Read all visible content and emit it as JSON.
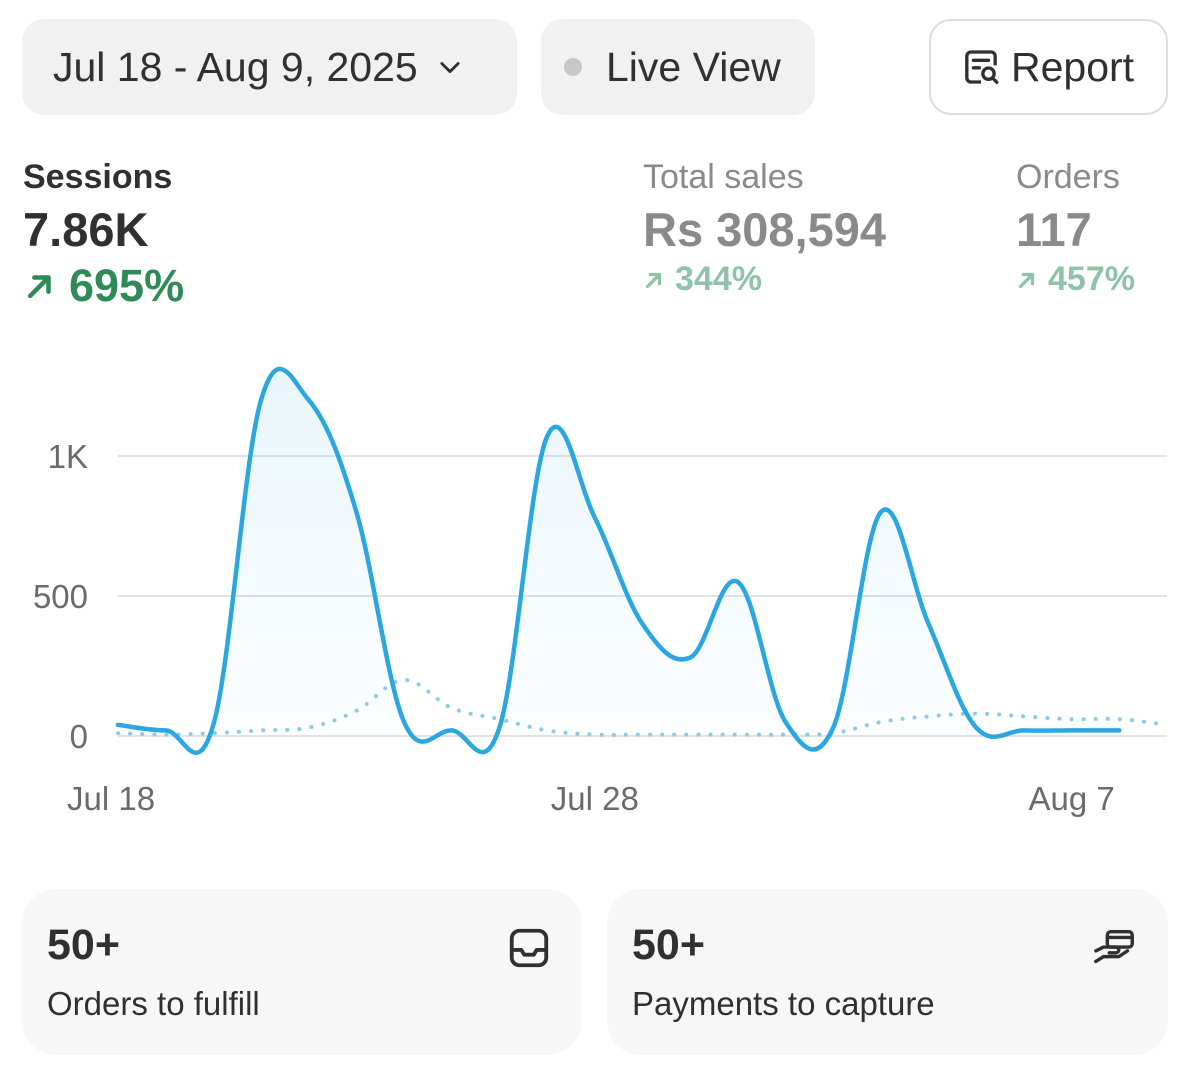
{
  "header": {
    "date_range": "Jul 18 - Aug 9, 2025",
    "live_view_label": "Live View",
    "report_label": "Report"
  },
  "metrics": {
    "sessions": {
      "label": "Sessions",
      "value": "7.86K",
      "change": "695%"
    },
    "total_sales": {
      "label": "Total sales",
      "value": "Rs 308,594",
      "change": "344%"
    },
    "orders": {
      "label": "Orders",
      "value": "117",
      "change": "457%"
    }
  },
  "colors": {
    "accent_line": "#2aa6e0",
    "comparison_line": "#8ccbe8",
    "positive": "#2f8a57",
    "positive_muted": "#8fc3a5"
  },
  "chart_data": {
    "type": "line",
    "x_tick_labels": [
      "Jul 18",
      "Jul 28",
      "Aug 7"
    ],
    "y_tick_labels": [
      "0",
      "500",
      "1K"
    ],
    "ylim": [
      0,
      1200
    ],
    "grid": true,
    "x_days": [
      0,
      1,
      2,
      3,
      4,
      5,
      6,
      7,
      8,
      9,
      10,
      11,
      12,
      13,
      14,
      15,
      16,
      17,
      18,
      19,
      20,
      21,
      22
    ],
    "series": [
      {
        "style": "solid",
        "values": [
          40,
          20,
          40,
          1200,
          1200,
          800,
          50,
          20,
          30,
          1070,
          780,
          400,
          280,
          550,
          50,
          30,
          800,
          400,
          30,
          20,
          20,
          20,
          null
        ]
      },
      {
        "style": "dotted",
        "values": [
          10,
          5,
          10,
          20,
          30,
          90,
          200,
          100,
          60,
          20,
          5,
          5,
          5,
          5,
          5,
          10,
          50,
          70,
          80,
          70,
          60,
          60,
          40
        ]
      }
    ]
  },
  "cards": [
    {
      "count": "50+",
      "label": "Orders to fulfill",
      "icon": "inbox-icon"
    },
    {
      "count": "50+",
      "label": "Payments to capture",
      "icon": "hand-money-icon"
    }
  ]
}
